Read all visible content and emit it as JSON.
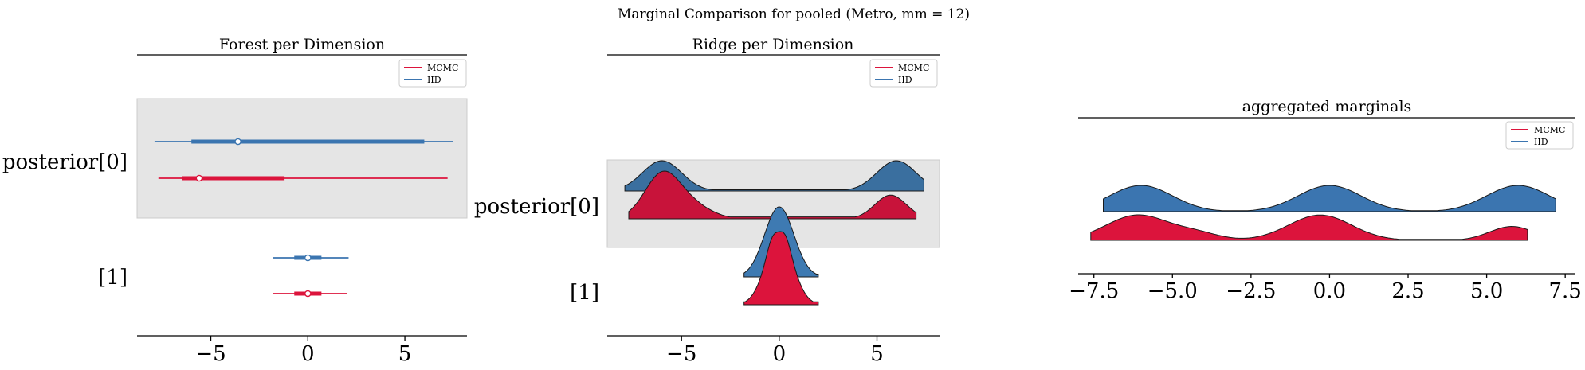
{
  "figure": {
    "suptitle": "Marginal Comparison for pooled (Metro, mm = 12)"
  },
  "colors": {
    "mcmc": "#dc143c",
    "iid": "#3b75b0",
    "band": "#e5e5e5",
    "band_edge": "#cccccc"
  },
  "legend": {
    "labels": [
      "MCMC",
      "IID"
    ]
  },
  "chart_data": [
    {
      "type": "forest",
      "title": "Forest per Dimension",
      "xlim": [
        -8.8,
        8.2
      ],
      "xticks": [
        -5,
        0,
        5
      ],
      "xtick_labels": [
        "−5",
        "0",
        "5"
      ],
      "ylabels": [
        "posterior[0]",
        "[1]"
      ],
      "legend": [
        "MCMC",
        "IID"
      ],
      "series": [
        {
          "name": "IID",
          "rows": [
            {
              "dim": 0,
              "median": -3.6,
              "hdi_50": [
                -6.0,
                6.0
              ],
              "hdi_94": [
                -7.9,
                7.5
              ]
            },
            {
              "dim": 1,
              "median": 0.0,
              "hdi_50": [
                -0.7,
                0.7
              ],
              "hdi_94": [
                -1.8,
                2.1
              ]
            }
          ]
        },
        {
          "name": "MCMC",
          "rows": [
            {
              "dim": 0,
              "median": -5.6,
              "hdi_50": [
                -6.5,
                -1.2
              ],
              "hdi_94": [
                -7.7,
                7.2
              ]
            },
            {
              "dim": 1,
              "median": 0.0,
              "hdi_50": [
                -0.7,
                0.7
              ],
              "hdi_94": [
                -1.8,
                2.0
              ]
            }
          ]
        }
      ]
    },
    {
      "type": "ridge",
      "title": "Ridge per Dimension",
      "xlim": [
        -8.8,
        8.2
      ],
      "xticks": [
        -5,
        0,
        5
      ],
      "xtick_labels": [
        "−5",
        "0",
        "5"
      ],
      "ylabels": [
        "posterior[0]",
        "[1]"
      ],
      "legend": [
        "MCMC",
        "IID"
      ],
      "series": [
        {
          "name": "IID",
          "rows": [
            {
              "dim": 0,
              "range": [
                -7.9,
                7.4
              ],
              "peaks": [
                [
                  -6.0,
                  1.0,
                  1.0
                ],
                [
                  6.0,
                  1.0,
                  1.0
                ]
              ]
            },
            {
              "dim": 1,
              "range": [
                -1.8,
                2.0
              ],
              "peaks": [
                [
                  0.0,
                  1.0,
                  0.75
                ]
              ]
            }
          ]
        },
        {
          "name": "MCMC",
          "rows": [
            {
              "dim": 0,
              "range": [
                -7.7,
                7.0
              ],
              "peaks": [
                [
                  -6.0,
                  1.0,
                  0.9
                ],
                [
                  -4.5,
                  0.3,
                  1.0
                ],
                [
                  5.7,
                  0.55,
                  0.8
                ]
              ]
            },
            {
              "dim": 1,
              "range": [
                -1.8,
                2.0
              ],
              "peaks": [
                [
                  0.0,
                  1.0,
                  0.7
                ],
                [
                  -0.4,
                  0.12,
                  0.25
                ],
                [
                  0.35,
                  0.12,
                  0.25
                ]
              ]
            }
          ]
        }
      ]
    },
    {
      "type": "area",
      "title": "aggregated marginals",
      "xlim": [
        -8.0,
        7.8
      ],
      "xticks": [
        -7.5,
        -5.0,
        -2.5,
        0.0,
        2.5,
        5.0,
        7.5
      ],
      "xtick_labels": [
        "−7.5",
        "−5.0",
        "−2.5",
        "0.0",
        "2.5",
        "5.0",
        "7.5"
      ],
      "legend": [
        "MCMC",
        "IID"
      ],
      "series": [
        {
          "name": "IID",
          "range": [
            -7.2,
            7.2
          ],
          "peaks": [
            [
              -6.0,
              1.0,
              1.0
            ],
            [
              0.0,
              1.0,
              1.0
            ],
            [
              6.0,
              1.0,
              1.0
            ]
          ]
        },
        {
          "name": "MCMC",
          "range": [
            -7.6,
            6.3
          ],
          "peaks": [
            [
              -6.1,
              1.0,
              1.0
            ],
            [
              -0.3,
              1.0,
              1.0
            ],
            [
              5.8,
              0.55,
              0.7
            ],
            [
              -4.2,
              0.25,
              0.7
            ]
          ]
        }
      ]
    }
  ]
}
